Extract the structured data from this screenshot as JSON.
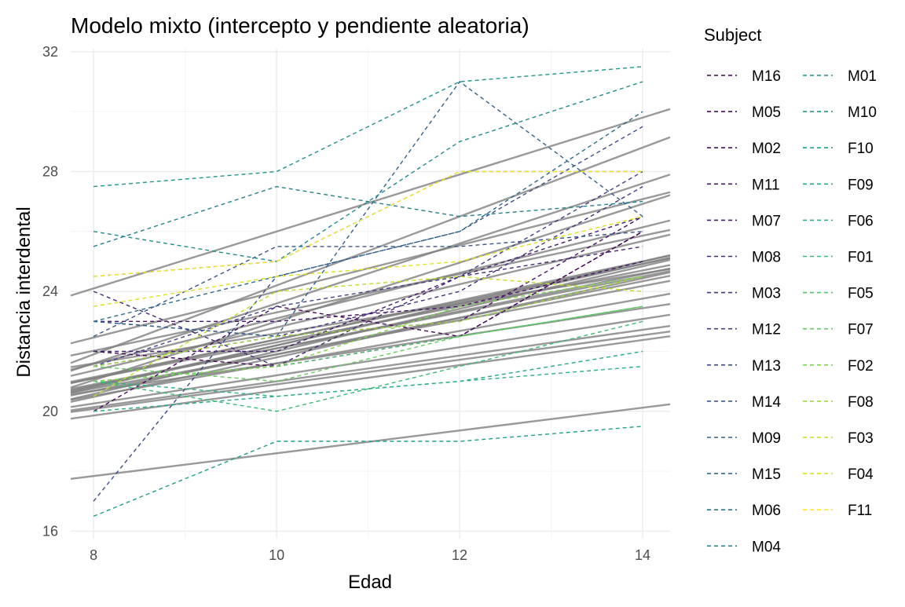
{
  "chart_data": {
    "type": "line",
    "title": "Modelo mixto (intercepto y pendiente aleatoria)",
    "xlabel": "Edad",
    "ylabel": "Distancia interdental",
    "legend_title": "Subject",
    "legend_position": "right",
    "grid": true,
    "xlim": [
      7.75,
      14.3
    ],
    "ylim": [
      15.75,
      32.1
    ],
    "x_ticks": [
      8,
      10,
      12,
      14
    ],
    "x_tick_labels": [
      "8",
      "10",
      "12",
      "14"
    ],
    "y_ticks": [
      16,
      20,
      24,
      28,
      32
    ],
    "y_tick_labels": [
      "16",
      "20",
      "24",
      "28",
      "32"
    ],
    "x": [
      8,
      10,
      12,
      14
    ],
    "series": [
      {
        "name": "M16",
        "color": "#440154",
        "values": [
          22.0,
          21.5,
          22.5,
          26.0
        ]
      },
      {
        "name": "M05",
        "color": "#46085C",
        "values": [
          20.0,
          23.5,
          22.5,
          26.0
        ]
      },
      {
        "name": "M02",
        "color": "#471063",
        "values": [
          21.5,
          22.5,
          23.0,
          26.5
        ]
      },
      {
        "name": "M11",
        "color": "#481769",
        "values": [
          23.0,
          23.0,
          23.5,
          25.0
        ]
      },
      {
        "name": "M07",
        "color": "#481D6F",
        "values": [
          22.0,
          22.0,
          24.5,
          26.5
        ]
      },
      {
        "name": "M08",
        "color": "#472A7A",
        "values": [
          24.0,
          21.5,
          24.5,
          25.5
        ]
      },
      {
        "name": "M03",
        "color": "#453581",
        "values": [
          23.0,
          22.5,
          24.0,
          27.5
        ]
      },
      {
        "name": "M12",
        "color": "#414287",
        "values": [
          21.5,
          23.5,
          24.5,
          28.0
        ]
      },
      {
        "name": "M13",
        "color": "#3D4D8A",
        "values": [
          17.0,
          24.5,
          26.0,
          29.5
        ]
      },
      {
        "name": "M14",
        "color": "#38588C",
        "values": [
          22.5,
          25.5,
          25.5,
          26.0
        ]
      },
      {
        "name": "M09",
        "color": "#33628D",
        "values": [
          23.0,
          22.5,
          31.0,
          26.5
        ]
      },
      {
        "name": "M15",
        "color": "#2E6C8E",
        "values": [
          23.0,
          24.5,
          26.0,
          30.0
        ]
      },
      {
        "name": "M06",
        "color": "#2A768E",
        "values": [
          24.5,
          25.0,
          28.0,
          28.0
        ]
      },
      {
        "name": "M04",
        "color": "#26818E",
        "values": [
          25.5,
          27.5,
          26.5,
          27.0
        ]
      },
      {
        "name": "M01",
        "color": "#228B8D",
        "values": [
          26.0,
          25.0,
          29.0,
          31.0
        ]
      },
      {
        "name": "M10",
        "color": "#1F958B",
        "values": [
          27.5,
          28.0,
          31.0,
          31.5
        ]
      },
      {
        "name": "F10",
        "color": "#1FA088",
        "values": [
          16.5,
          19.0,
          19.0,
          19.5
        ]
      },
      {
        "name": "F09",
        "color": "#24AA83",
        "values": [
          20.0,
          20.5,
          21.0,
          22.0
        ]
      },
      {
        "name": "F06",
        "color": "#2EB37C",
        "values": [
          21.0,
          20.5,
          21.0,
          21.5
        ]
      },
      {
        "name": "F01",
        "color": "#3BBB75",
        "values": [
          21.0,
          20.0,
          21.5,
          23.0
        ]
      },
      {
        "name": "F05",
        "color": "#4EC36B",
        "values": [
          21.0,
          21.5,
          22.5,
          23.5
        ]
      },
      {
        "name": "F07",
        "color": "#65CB5E",
        "values": [
          21.5,
          21.0,
          22.5,
          23.5
        ]
      },
      {
        "name": "F02",
        "color": "#7ED34F",
        "values": [
          21.0,
          21.5,
          23.5,
          24.5
        ]
      },
      {
        "name": "F08",
        "color": "#9AD93C",
        "values": [
          21.5,
          22.5,
          23.0,
          24.5
        ]
      },
      {
        "name": "F03",
        "color": "#BBDF27",
        "values": [
          20.5,
          24.0,
          24.5,
          24.0
        ]
      },
      {
        "name": "F04",
        "color": "#DAE319",
        "values": [
          23.5,
          24.5,
          25.0,
          26.5
        ]
      },
      {
        "name": "F11",
        "color": "#FDE725",
        "values": [
          24.5,
          25.0,
          28.0,
          28.0
        ]
      }
    ],
    "fitted_lines": {
      "color": "#808080",
      "x_range": [
        7.75,
        14.3
      ],
      "lines": [
        {
          "intercept": 13.2,
          "slope": 0.98
        },
        {
          "intercept": 16.5,
          "slope": 0.95
        },
        {
          "intercept": 12.7,
          "slope": 1.15
        },
        {
          "intercept": 13.6,
          "slope": 1.0
        },
        {
          "intercept": 16.3,
          "slope": 0.77
        },
        {
          "intercept": 16.9,
          "slope": 0.64
        },
        {
          "intercept": 15.5,
          "slope": 0.76
        },
        {
          "intercept": 15.6,
          "slope": 0.72
        },
        {
          "intercept": 16.1,
          "slope": 0.63
        },
        {
          "intercept": 15.9,
          "slope": 0.62
        },
        {
          "intercept": 15.2,
          "slope": 0.66
        },
        {
          "intercept": 14.9,
          "slope": 0.71
        },
        {
          "intercept": 16.2,
          "slope": 0.54
        },
        {
          "intercept": 16.3,
          "slope": 0.6
        },
        {
          "intercept": 15.4,
          "slope": 0.68
        },
        {
          "intercept": 17.6,
          "slope": 0.5
        },
        {
          "intercept": 15.9,
          "slope": 0.65
        },
        {
          "intercept": 16.2,
          "slope": 0.57
        },
        {
          "intercept": 15.8,
          "slope": 0.61
        },
        {
          "intercept": 15.2,
          "slope": 0.7
        },
        {
          "intercept": 16.1,
          "slope": 0.6
        },
        {
          "intercept": 17.0,
          "slope": 0.46
        },
        {
          "intercept": 16.7,
          "slope": 0.43
        },
        {
          "intercept": 16.8,
          "slope": 0.41
        },
        {
          "intercept": 16.5,
          "slope": 0.42
        },
        {
          "intercept": 16.5,
          "slope": 0.47
        },
        {
          "intercept": 14.8,
          "slope": 0.38
        }
      ]
    }
  }
}
